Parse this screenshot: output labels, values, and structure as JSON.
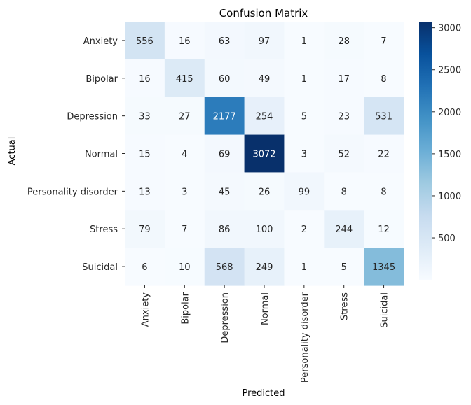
{
  "chart_data": {
    "type": "heatmap",
    "title": "Confusion Matrix",
    "xlabel": "Predicted",
    "ylabel": "Actual",
    "x_categories": [
      "Anxiety",
      "Bipolar",
      "Depression",
      "Normal",
      "Personality disorder",
      "Stress",
      "Suicidal"
    ],
    "y_categories": [
      "Anxiety",
      "Bipolar",
      "Depression",
      "Normal",
      "Personality disorder",
      "Stress",
      "Suicidal"
    ],
    "values": [
      [
        556,
        16,
        63,
        97,
        1,
        28,
        7
      ],
      [
        16,
        415,
        60,
        49,
        1,
        17,
        8
      ],
      [
        33,
        27,
        2177,
        254,
        5,
        23,
        531
      ],
      [
        15,
        4,
        69,
        3072,
        3,
        52,
        22
      ],
      [
        13,
        3,
        45,
        26,
        99,
        8,
        8
      ],
      [
        79,
        7,
        86,
        100,
        2,
        244,
        12
      ],
      [
        6,
        10,
        568,
        249,
        1,
        5,
        1345
      ]
    ],
    "colorbar": {
      "colormap": "Blues",
      "range": [
        1,
        3072
      ],
      "ticks": [
        500,
        1000,
        1500,
        2000,
        2500,
        3000
      ]
    }
  }
}
